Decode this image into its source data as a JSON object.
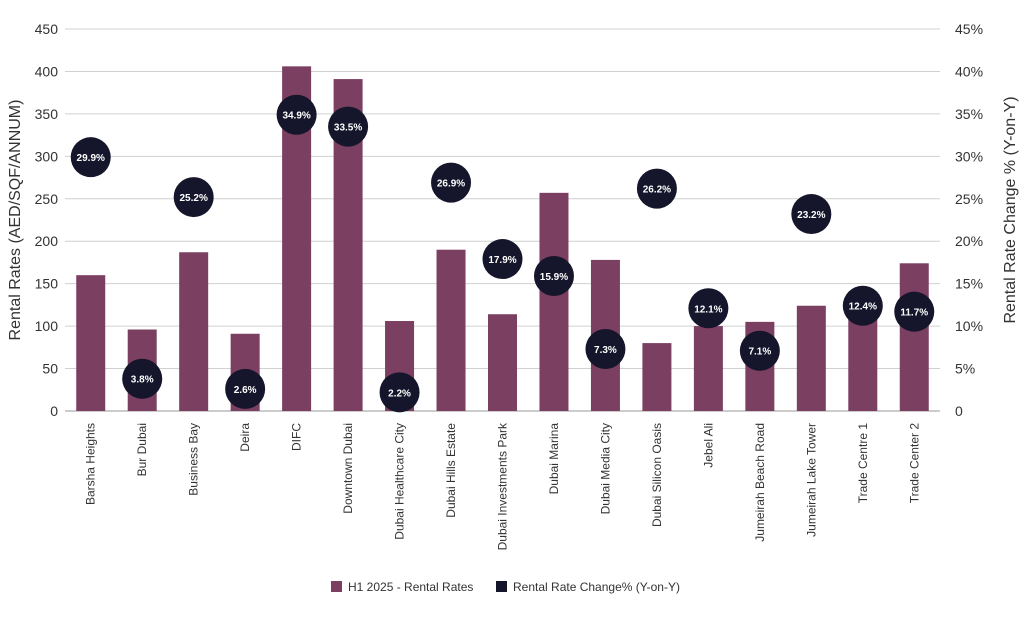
{
  "chart_data": {
    "type": "bar",
    "categories": [
      "Barsha Heights",
      "Bur Dubai",
      "Business Bay",
      "Deira",
      "DIFC",
      "Downtown Dubai",
      "Dubai Healthcare City",
      "Dubai Hills Estate",
      "Dubai Investments Park",
      "Dubai Marina",
      "Dubai Media City",
      "Dubai Silicon Oasis",
      "Jebel Ali",
      "Jumeirah Beach Road",
      "Jumeirah Lake Tower",
      "Trade Centre 1",
      "Trade Center 2"
    ],
    "series": [
      {
        "name": "H1 2025 - Rental Rates",
        "type": "bar",
        "axis": "left",
        "color": "#7b3f61",
        "values": [
          160,
          96,
          187,
          91,
          406,
          391,
          106,
          190,
          114,
          257,
          178,
          80,
          100,
          105,
          124,
          115,
          174
        ]
      },
      {
        "name": "Rental Rate Change% (Y-on-Y)",
        "type": "bubble",
        "axis": "right",
        "color": "#15152b",
        "values": [
          29.9,
          3.8,
          25.2,
          2.6,
          34.9,
          33.5,
          2.2,
          26.9,
          17.9,
          15.9,
          7.3,
          26.2,
          12.1,
          7.1,
          23.2,
          12.4,
          11.7
        ],
        "labels": [
          "29.9%",
          "3.8%",
          "25.2%",
          "2.6%",
          "34.9%",
          "33.5%",
          "2.2%",
          "26.9%",
          "17.9%",
          "15.9%",
          "7.3%",
          "26.2%",
          "12.1%",
          "7.1%",
          "23.2%",
          "12.4%",
          "11.7%"
        ]
      }
    ],
    "ylabel": "Rental Rates (AED/SQF/ANNUM)",
    "y2label": "Rental Rate Change % (Y-on-Y)",
    "ylim": [
      0,
      450
    ],
    "y2lim": [
      0,
      45
    ],
    "yticks": [
      "0",
      "50",
      "100",
      "150",
      "200",
      "250",
      "300",
      "350",
      "400",
      "450"
    ],
    "y2ticks": [
      "0",
      "5%",
      "10%",
      "15%",
      "20%",
      "25%",
      "30%",
      "35%",
      "40%",
      "45%"
    ],
    "grid": true,
    "legend_position": "bottom-center"
  }
}
